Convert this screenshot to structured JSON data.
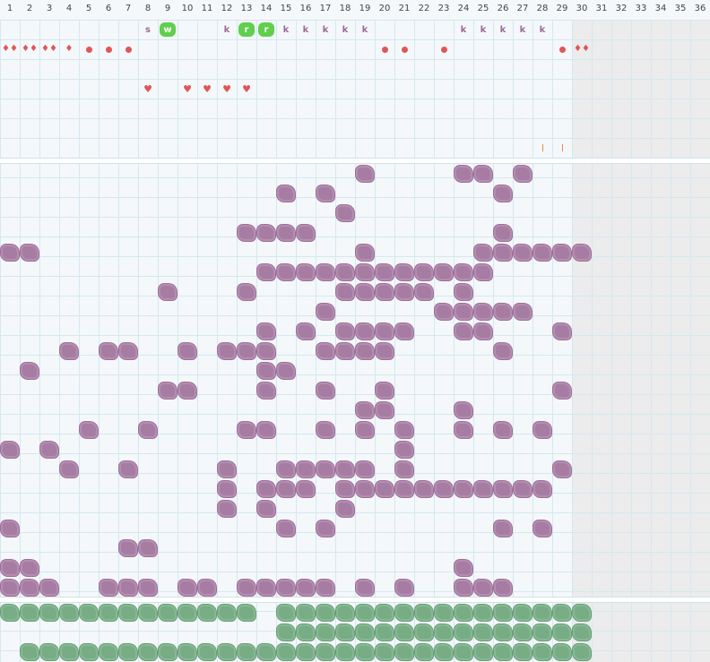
{
  "days": [
    "1",
    "2",
    "3",
    "4",
    "5",
    "6",
    "7",
    "8",
    "9",
    "10",
    "11",
    "12",
    "13",
    "14",
    "15",
    "16",
    "17",
    "18",
    "19",
    "20",
    "21",
    "22",
    "23",
    "24",
    "25",
    "26",
    "27",
    "28",
    "29",
    "30",
    "31",
    "32",
    "33",
    "34",
    "35",
    "36"
  ],
  "colors": {
    "purple": "#a67ca2",
    "green": "#77ac85",
    "red": "#e05656",
    "badge_green": "#5fcf4c",
    "orange": "#e88a4a"
  },
  "symbol_rows": [
    {
      "name": "letter-row",
      "cells": [
        {
          "day": 8,
          "kind": "letter",
          "text": "s"
        },
        {
          "day": 9,
          "kind": "badge",
          "text": "w"
        },
        {
          "day": 12,
          "kind": "letter",
          "text": "k"
        },
        {
          "day": 13,
          "kind": "badge",
          "text": "r"
        },
        {
          "day": 14,
          "kind": "badge",
          "text": "r"
        },
        {
          "day": 15,
          "kind": "letter",
          "text": "k"
        },
        {
          "day": 16,
          "kind": "letter",
          "text": "k"
        },
        {
          "day": 17,
          "kind": "letter",
          "text": "k"
        },
        {
          "day": 18,
          "kind": "letter",
          "text": "k"
        },
        {
          "day": 19,
          "kind": "letter",
          "text": "k"
        },
        {
          "day": 24,
          "kind": "letter",
          "text": "k"
        },
        {
          "day": 25,
          "kind": "letter",
          "text": "k"
        },
        {
          "day": 26,
          "kind": "letter",
          "text": "k"
        },
        {
          "day": 27,
          "kind": "letter",
          "text": "k"
        },
        {
          "day": 28,
          "kind": "letter",
          "text": "k"
        }
      ]
    },
    {
      "name": "drop-row",
      "cells": [
        {
          "day": 1,
          "kind": "drop",
          "text": "♦♦"
        },
        {
          "day": 2,
          "kind": "drop",
          "text": "♦♦"
        },
        {
          "day": 3,
          "kind": "drop",
          "text": "♦♦"
        },
        {
          "day": 4,
          "kind": "drop",
          "text": "♦"
        },
        {
          "day": 5,
          "kind": "dot"
        },
        {
          "day": 6,
          "kind": "dot"
        },
        {
          "day": 7,
          "kind": "dot"
        },
        {
          "day": 20,
          "kind": "dot"
        },
        {
          "day": 21,
          "kind": "dot"
        },
        {
          "day": 23,
          "kind": "dot"
        },
        {
          "day": 29,
          "kind": "dot"
        },
        {
          "day": 30,
          "kind": "drop",
          "text": "♦♦"
        }
      ]
    },
    {
      "name": "empty-row-a",
      "cells": []
    },
    {
      "name": "heart-row",
      "cells": [
        {
          "day": 8,
          "kind": "heart",
          "text": "♥"
        },
        {
          "day": 10,
          "kind": "heart",
          "text": "♥"
        },
        {
          "day": 11,
          "kind": "heart",
          "text": "♥"
        },
        {
          "day": 12,
          "kind": "heart",
          "text": "♥"
        },
        {
          "day": 13,
          "kind": "heart",
          "text": "♥"
        }
      ]
    },
    {
      "name": "empty-row-b",
      "cells": []
    },
    {
      "name": "empty-row-c",
      "cells": []
    },
    {
      "name": "tick-row",
      "cells": [
        {
          "day": 28,
          "kind": "tick"
        },
        {
          "day": 29,
          "kind": "tick"
        }
      ]
    }
  ],
  "purple_rows": [
    [
      19,
      24,
      25,
      27
    ],
    [
      15,
      17,
      26
    ],
    [
      18
    ],
    [
      13,
      14,
      15,
      16,
      26
    ],
    [
      1,
      2,
      19,
      25,
      26,
      27,
      28,
      29,
      30
    ],
    [
      14,
      15,
      16,
      17,
      18,
      19,
      20,
      21,
      22,
      23,
      24,
      25
    ],
    [
      9,
      13,
      18,
      19,
      20,
      21,
      22,
      24
    ],
    [
      17,
      23,
      24,
      25,
      26,
      27
    ],
    [
      14,
      16,
      18,
      19,
      20,
      21,
      24,
      25,
      29
    ],
    [
      4,
      6,
      7,
      10,
      12,
      13,
      14,
      17,
      18,
      19,
      20,
      26
    ],
    [
      2,
      14,
      15
    ],
    [
      9,
      10,
      14,
      17,
      20,
      29
    ],
    [
      19,
      20,
      24
    ],
    [
      5,
      8,
      13,
      14,
      17,
      19,
      21,
      24,
      26,
      28
    ],
    [
      1,
      3,
      21
    ],
    [
      4,
      7,
      12,
      15,
      16,
      17,
      18,
      19,
      21,
      29
    ],
    [
      12,
      14,
      15,
      16,
      18,
      19,
      20,
      21,
      22,
      23,
      24,
      25,
      26,
      27,
      28
    ],
    [
      12,
      14,
      18
    ],
    [
      1,
      15,
      17,
      26,
      28
    ],
    [
      7,
      8
    ],
    [
      1,
      2,
      24
    ],
    [
      1,
      2,
      3,
      6,
      7,
      8,
      10,
      11,
      13,
      14,
      15,
      16,
      17,
      19,
      21,
      24,
      25,
      26
    ]
  ],
  "green_rows": [
    [
      1,
      2,
      3,
      4,
      5,
      6,
      7,
      8,
      9,
      10,
      11,
      12,
      13,
      15,
      16,
      17,
      18,
      19,
      20,
      21,
      22,
      23,
      24,
      25,
      26,
      27,
      28,
      29,
      30
    ],
    [
      15,
      16,
      17,
      18,
      19,
      20,
      21,
      22,
      23,
      24,
      25,
      26,
      27,
      28,
      29,
      30
    ],
    [
      2,
      3,
      4,
      5,
      6,
      7,
      8,
      9,
      10,
      11,
      12,
      13,
      14,
      15,
      16,
      17,
      18,
      19,
      20,
      21,
      22,
      23,
      24,
      25,
      26,
      27,
      28,
      29,
      30
    ]
  ]
}
